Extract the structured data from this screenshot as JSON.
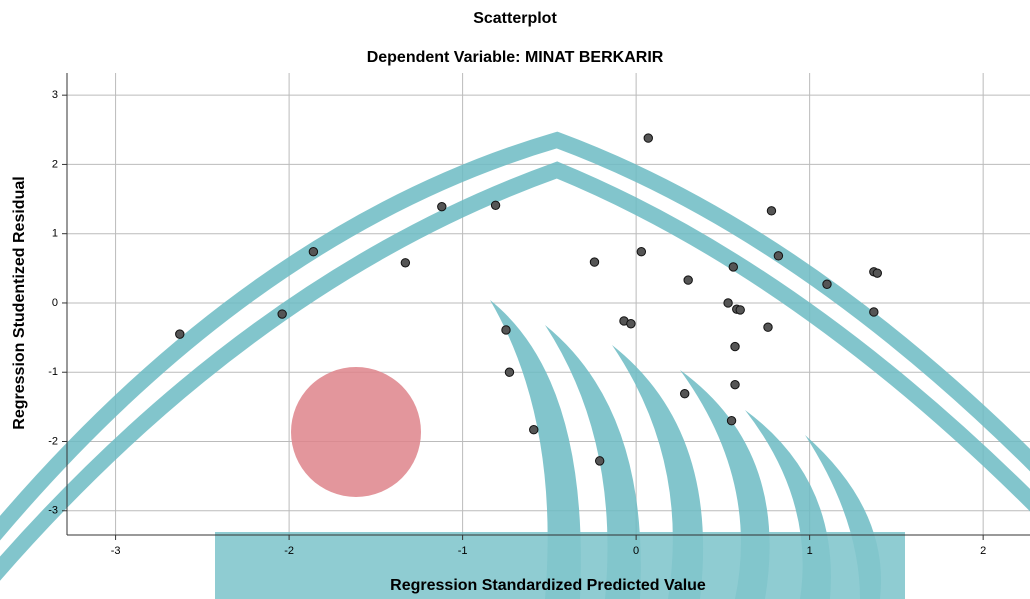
{
  "chart_data": {
    "type": "scatter",
    "title": "Scatterplot",
    "subtitle": "Dependent Variable: MINAT BERKARIR",
    "x_label": "Regression Standardized Predicted Value",
    "y_label": "Regression Studentized Residual",
    "xlim": [
      -3.28,
      2.27
    ],
    "ylim": [
      -3.35,
      3.32
    ],
    "xticks": [
      -3,
      -2,
      -1,
      0,
      1,
      2
    ],
    "yticks": [
      -3,
      -2,
      -1,
      0,
      1,
      2,
      3
    ],
    "grid": true,
    "color": "#555555",
    "x": [
      -2.63,
      -2.04,
      -1.86,
      -1.33,
      -1.12,
      -0.81,
      -0.75,
      -0.73,
      -0.59,
      -0.21,
      -0.24,
      -0.07,
      -0.03,
      0.03,
      0.07,
      0.28,
      0.3,
      0.53,
      0.56,
      0.57,
      0.57,
      0.55,
      0.58,
      0.6,
      0.76,
      0.78,
      0.82,
      1.1,
      1.37,
      1.39,
      1.37
    ],
    "values": [
      -0.45,
      -0.16,
      0.74,
      0.58,
      1.39,
      1.41,
      -0.39,
      -1.0,
      -1.83,
      -2.28,
      0.59,
      -0.26,
      -0.3,
      0.74,
      2.38,
      -1.31,
      0.33,
      0.0,
      0.52,
      -0.63,
      -1.18,
      -1.7,
      -0.09,
      -0.1,
      -0.35,
      1.33,
      0.68,
      0.27,
      0.45,
      0.43,
      -0.13
    ]
  }
}
